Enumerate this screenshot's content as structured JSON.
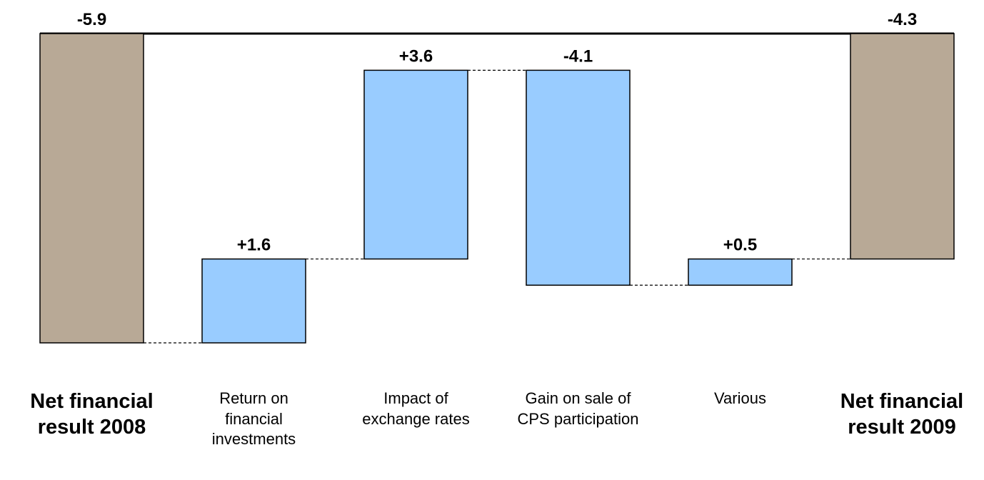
{
  "chart_data": {
    "type": "waterfall",
    "categories": [
      "Net financial result 2008",
      "Return on financial investments",
      "Impact of exchange rates",
      "Gain on sale of CPS participation",
      "Various",
      "Net financial result 2009"
    ],
    "values": [
      -5.9,
      1.6,
      3.6,
      -4.1,
      0.5,
      -4.3
    ],
    "value_labels": [
      "-5.9",
      "+1.6",
      "+3.6",
      "-4.1",
      "+0.5",
      "-4.3"
    ],
    "measure": [
      "absolute",
      "relative",
      "relative",
      "relative",
      "relative",
      "total"
    ],
    "colors": {
      "total": "#b8a996",
      "delta": "#99ccff"
    }
  }
}
